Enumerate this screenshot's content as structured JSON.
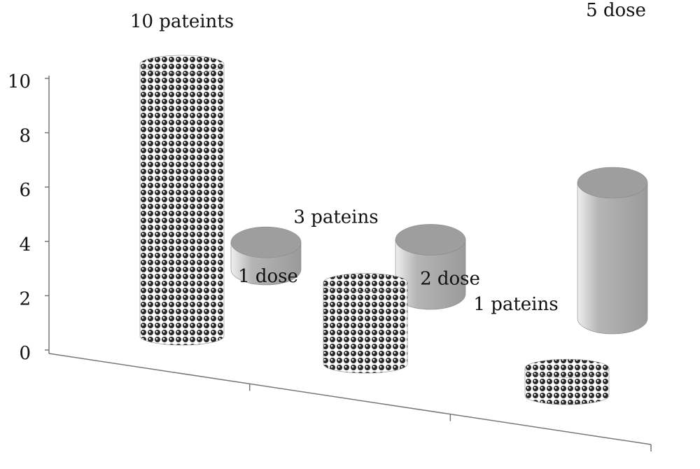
{
  "chart_data": {
    "type": "bar3d",
    "categories": [
      null,
      null,
      null
    ],
    "series": [
      {
        "color": "#2a2a2a",
        "pattern": "dots",
        "values": [
          10,
          3,
          1
        ],
        "value_labels": [
          "10 pateints",
          "3 pateins",
          "1 pateins"
        ]
      },
      {
        "color": "#b5b5b5",
        "values": [
          1,
          2,
          5
        ],
        "value_labels": [
          "1 dose",
          "2 dose",
          "5 dose"
        ]
      }
    ],
    "ylim": [
      0,
      10
    ],
    "yticks": [
      0,
      2,
      4,
      6,
      8,
      10
    ],
    "grid": false
  }
}
